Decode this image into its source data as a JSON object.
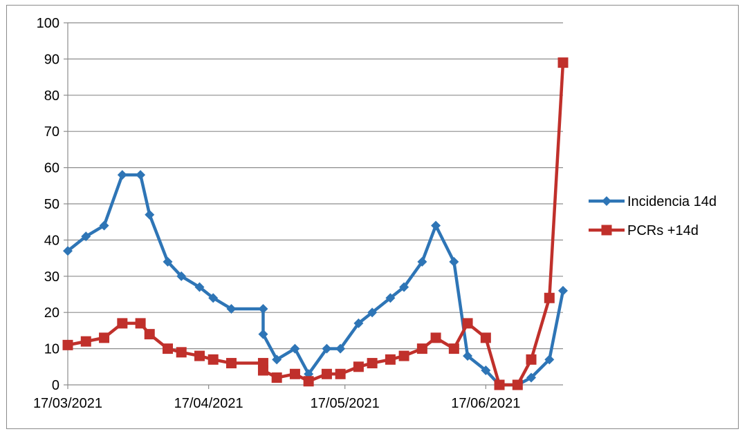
{
  "chart_data": {
    "type": "line",
    "title": "",
    "xlabel": "",
    "ylabel": "",
    "ylim": [
      0,
      100
    ],
    "yticks": [
      0,
      10,
      20,
      30,
      40,
      50,
      60,
      70,
      80,
      90,
      100
    ],
    "x_axis": "date",
    "xlim": [
      "2021-03-17",
      "2021-07-04"
    ],
    "xtick_labels": [
      "17/03/2021",
      "17/04/2021",
      "17/05/2021",
      "17/06/2021"
    ],
    "xtick_dates": [
      "2021-03-17",
      "2021-04-17",
      "2021-05-17",
      "2021-06-17"
    ],
    "grid": "horizontal",
    "legend_position": "right",
    "series": [
      {
        "name": "Incidencia 14d",
        "color": "#2E75B6",
        "marker": "diamond",
        "points": [
          [
            "2021-03-17",
            37
          ],
          [
            "2021-03-21",
            41
          ],
          [
            "2021-03-25",
            44
          ],
          [
            "2021-03-29",
            58
          ],
          [
            "2021-04-02",
            58
          ],
          [
            "2021-04-04",
            47
          ],
          [
            "2021-04-08",
            34
          ],
          [
            "2021-04-11",
            30
          ],
          [
            "2021-04-15",
            27
          ],
          [
            "2021-04-18",
            24
          ],
          [
            "2021-04-22",
            21
          ],
          [
            "2021-04-29",
            21
          ],
          [
            "2021-04-29",
            14
          ],
          [
            "2021-05-02",
            7
          ],
          [
            "2021-05-06",
            10
          ],
          [
            "2021-05-09",
            3
          ],
          [
            "2021-05-13",
            10
          ],
          [
            "2021-05-16",
            10
          ],
          [
            "2021-05-20",
            17
          ],
          [
            "2021-05-23",
            20
          ],
          [
            "2021-05-27",
            24
          ],
          [
            "2021-05-30",
            27
          ],
          [
            "2021-06-03",
            34
          ],
          [
            "2021-06-06",
            44
          ],
          [
            "2021-06-10",
            34
          ],
          [
            "2021-06-13",
            8
          ],
          [
            "2021-06-17",
            4
          ],
          [
            "2021-06-20",
            0
          ],
          [
            "2021-06-24",
            0
          ],
          [
            "2021-06-27",
            2
          ],
          [
            "2021-07-01",
            7
          ],
          [
            "2021-07-04",
            26
          ]
        ]
      },
      {
        "name": "PCRs +14d",
        "color": "#C0302B",
        "marker": "square",
        "points": [
          [
            "2021-03-17",
            11
          ],
          [
            "2021-03-21",
            12
          ],
          [
            "2021-03-25",
            13
          ],
          [
            "2021-03-29",
            17
          ],
          [
            "2021-04-02",
            17
          ],
          [
            "2021-04-04",
            14
          ],
          [
            "2021-04-08",
            10
          ],
          [
            "2021-04-11",
            9
          ],
          [
            "2021-04-15",
            8
          ],
          [
            "2021-04-18",
            7
          ],
          [
            "2021-04-22",
            6
          ],
          [
            "2021-04-29",
            6
          ],
          [
            "2021-04-29",
            4
          ],
          [
            "2021-05-02",
            2
          ],
          [
            "2021-05-06",
            3
          ],
          [
            "2021-05-09",
            1
          ],
          [
            "2021-05-13",
            3
          ],
          [
            "2021-05-16",
            3
          ],
          [
            "2021-05-20",
            5
          ],
          [
            "2021-05-23",
            6
          ],
          [
            "2021-05-27",
            7
          ],
          [
            "2021-05-30",
            8
          ],
          [
            "2021-06-03",
            10
          ],
          [
            "2021-06-06",
            13
          ],
          [
            "2021-06-10",
            10
          ],
          [
            "2021-06-13",
            17
          ],
          [
            "2021-06-17",
            13
          ],
          [
            "2021-06-20",
            0
          ],
          [
            "2021-06-24",
            0
          ],
          [
            "2021-06-27",
            7
          ],
          [
            "2021-07-01",
            24
          ],
          [
            "2021-07-04",
            89
          ]
        ]
      }
    ]
  }
}
